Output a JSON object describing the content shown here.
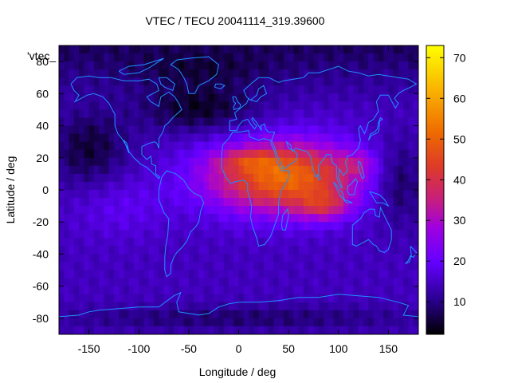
{
  "chart_data": {
    "type": "heatmap",
    "title": "VTEC / TECU 20041114_319.39600",
    "xlabel": "Longitude / deg",
    "ylabel": "Latitude / deg",
    "series_label": "'vtec_",
    "xlim": [
      -180,
      180
    ],
    "ylim": [
      -90,
      90
    ],
    "xticks": [
      -150,
      -100,
      -50,
      0,
      50,
      100,
      150
    ],
    "yticks": [
      -80,
      -60,
      -40,
      -20,
      0,
      20,
      40,
      60,
      80
    ],
    "colorbar": {
      "range": [
        2,
        73
      ],
      "ticks": [
        10,
        20,
        30,
        40,
        50,
        60,
        70
      ]
    },
    "grid": false,
    "description_fields": {
      "background_level": 14,
      "max_value": 73
    },
    "peaks": [
      {
        "lon": 80,
        "lat": -8,
        "value": 58
      },
      {
        "lon": 15,
        "lat": 17,
        "value": 52
      },
      {
        "lon": 120,
        "lat": 15,
        "value": 48
      }
    ],
    "colorscale": [
      "#000000",
      "#1a0066",
      "#4b00c8",
      "#7a00ff",
      "#a000e0",
      "#c01f8c",
      "#d83a3a",
      "#e86010",
      "#f59b00",
      "#ffd800",
      "#ffff00"
    ],
    "coastline_color": "#1e90ff"
  }
}
